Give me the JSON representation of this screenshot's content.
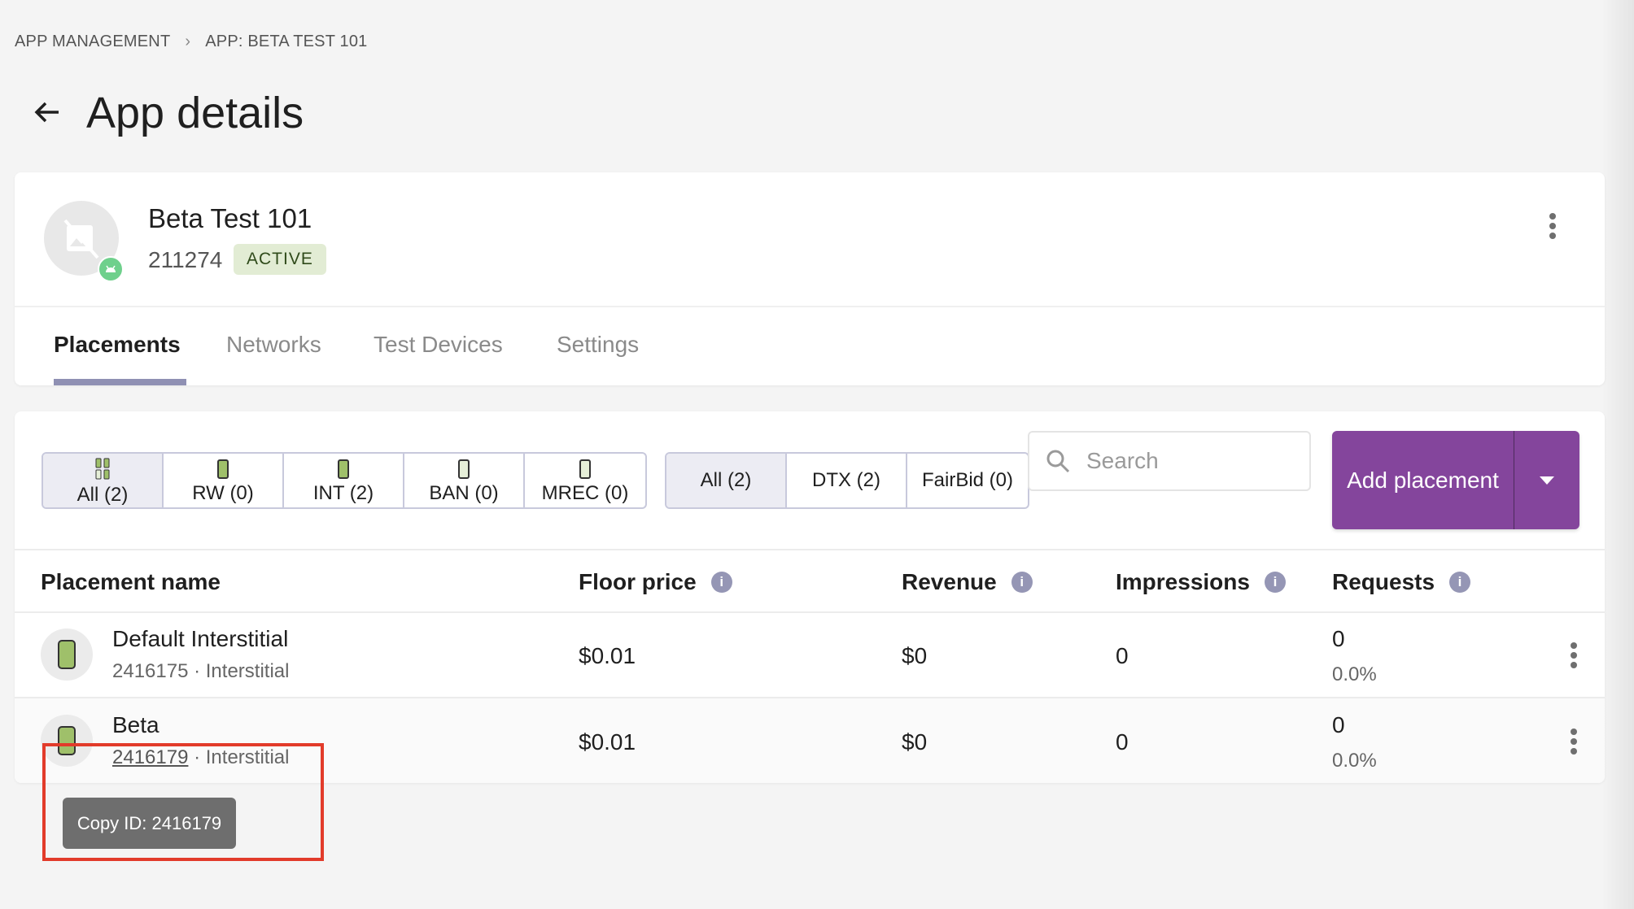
{
  "breadcrumb": {
    "items": [
      "APP MANAGEMENT",
      "APP: BETA TEST 101"
    ]
  },
  "page": {
    "title": "App details"
  },
  "app": {
    "name": "Beta Test 101",
    "id": "211274",
    "status": "ACTIVE",
    "platform_icon": "android-icon"
  },
  "tabs": [
    {
      "label": "Placements",
      "active": true
    },
    {
      "label": "Networks"
    },
    {
      "label": "Test Devices"
    },
    {
      "label": "Settings"
    }
  ],
  "ad_type_filters": [
    {
      "label": "All (2)",
      "selected": true
    },
    {
      "label": "RW (0)"
    },
    {
      "label": "INT (2)"
    },
    {
      "label": "BAN (0)"
    },
    {
      "label": "MREC (0)"
    }
  ],
  "source_filters": [
    {
      "label": "All (2)",
      "selected": true
    },
    {
      "label": "DTX (2)"
    },
    {
      "label": "FairBid (0)"
    }
  ],
  "search": {
    "placeholder": "Search",
    "value": ""
  },
  "add_button": {
    "label": "Add placement"
  },
  "table": {
    "columns": [
      "Placement name",
      "Floor price",
      "Revenue",
      "Impressions",
      "Requests"
    ],
    "rows": [
      {
        "name": "Default Interstitial",
        "id": "2416175",
        "type": "Interstitial",
        "floor_price": "$0.01",
        "revenue": "$0",
        "impressions": "0",
        "requests": "0",
        "requests_pct": "0.0%"
      },
      {
        "name": "Beta",
        "id": "2416179",
        "type": "Interstitial",
        "floor_price": "$0.01",
        "revenue": "$0",
        "impressions": "0",
        "requests": "0",
        "requests_pct": "0.0%"
      }
    ]
  },
  "tooltip": {
    "text": "Copy ID: 2416179"
  },
  "colors": {
    "accent": "#84459c",
    "active_badge_bg": "#e2ecd4",
    "highlight": "#e23b2a",
    "tab_underline": "#8f90b3"
  }
}
